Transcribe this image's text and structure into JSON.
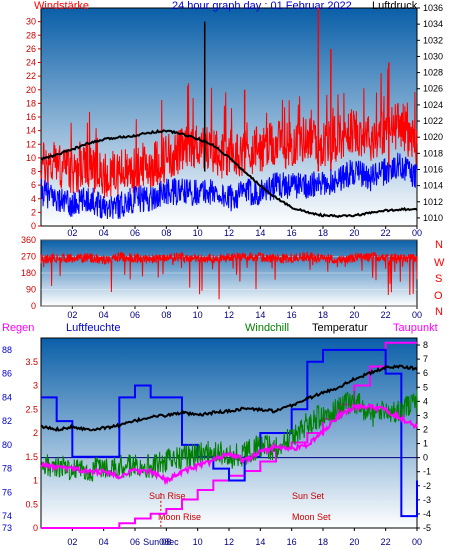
{
  "header": {
    "title": "24 hour graph day : 01 Februar 2022",
    "left_label": "Windstärke",
    "right_label": "Luftdruck"
  },
  "mid_panel": {
    "compass": [
      "N",
      "W",
      "S",
      "O",
      "N"
    ]
  },
  "bottom_header": {
    "regen": "Regen",
    "luftfeuchte": "Luftfeuchte",
    "windchill": "Windchill",
    "temperatur": "Temperatur",
    "taupunkt": "Taupunkt"
  },
  "annotations": {
    "sun_rise": "Sun Rise",
    "sun_set": "Sun Set",
    "moon_rise": "Moon Rise",
    "moon_set": "Moon Set",
    "sunrise_tick": "Sun08ec"
  },
  "colors": {
    "wind": "#ff0000",
    "wind_avg": "#0000ff",
    "pressure": "#000000",
    "direction": "#ff0000",
    "regen": "#ff00ff",
    "luftfeuchte": "#0000ff",
    "windchill": "#008000",
    "temperatur": "#000000",
    "taupunkt": "#ff00ff",
    "grad_top": "#0a5fa8",
    "grad_bottom": "#ffffff"
  },
  "chart_data": [
    {
      "type": "line",
      "x_ticks": [
        "02",
        "04",
        "06",
        "08",
        "10",
        "12",
        "14",
        "16",
        "18",
        "20",
        "22",
        "00"
      ],
      "left_ticks": [
        "0",
        "2",
        "4",
        "6",
        "8",
        "10",
        "12",
        "14",
        "16",
        "18",
        "20",
        "22",
        "24",
        "26",
        "28",
        "30"
      ],
      "right_ticks": [
        "1010",
        "1012",
        "1014",
        "1016",
        "1018",
        "1020",
        "1022",
        "1024",
        "1026",
        "1028",
        "1030",
        "1032",
        "1034",
        "1036"
      ],
      "ylim_left": [
        0,
        32
      ],
      "ylim_right": [
        1009,
        1036
      ],
      "series": [
        {
          "x": [
            0,
            1,
            2,
            3,
            4,
            5,
            6,
            7,
            8,
            9,
            10,
            11,
            12,
            13,
            14,
            15,
            16,
            17,
            18,
            19,
            20,
            21,
            22,
            23,
            24
          ],
          "values": [
            9,
            9,
            8,
            9,
            7,
            8,
            8,
            9,
            10,
            11,
            12,
            11,
            10,
            11,
            11,
            12,
            12,
            13,
            12,
            13,
            14,
            13,
            14,
            15,
            12
          ]
        },
        {
          "x": [
            0,
            1,
            2,
            3,
            4,
            5,
            6,
            7,
            8,
            9,
            10,
            11,
            12,
            13,
            14,
            15,
            16,
            17,
            18,
            19,
            20,
            21,
            22,
            23,
            24
          ],
          "values": [
            5,
            4,
            3,
            4,
            3,
            3,
            4,
            4,
            5,
            5,
            5,
            5,
            4,
            5,
            5,
            6,
            6,
            6,
            6,
            7,
            8,
            7,
            8,
            9,
            7
          ]
        },
        {
          "x": [
            0,
            1,
            2,
            3,
            4,
            5,
            6,
            7,
            8,
            9,
            10,
            11,
            12,
            13,
            14,
            15,
            16,
            17,
            18,
            19,
            20,
            21,
            22,
            23,
            24
          ],
          "values": [
            1017.3,
            1017.8,
            1018.5,
            1019.2,
            1019.7,
            1020.0,
            1020.2,
            1020.6,
            1020.8,
            1020.4,
            1019.8,
            1019.0,
            1017.5,
            1015.7,
            1014.0,
            1012.5,
            1011.3,
            1010.7,
            1010.3,
            1010.2,
            1010.3,
            1010.6,
            1010.9,
            1011.1,
            1011.0
          ]
        }
      ]
    },
    {
      "type": "line",
      "x_ticks": [
        "02",
        "04",
        "06",
        "08",
        "10",
        "12",
        "14",
        "16",
        "18",
        "20",
        "22",
        "00"
      ],
      "left_ticks": [
        "0",
        "90",
        "180",
        "270",
        "360"
      ],
      "ylim": [
        0,
        360
      ],
      "series": [
        {
          "x": [
            0,
            1,
            2,
            3,
            4,
            5,
            6,
            7,
            8,
            9,
            10,
            11,
            12,
            13,
            14,
            15,
            16,
            17,
            18,
            19,
            20,
            21,
            22,
            23,
            24
          ],
          "values": [
            255,
            262,
            258,
            265,
            250,
            270,
            260,
            255,
            262,
            268,
            260,
            258,
            264,
            270,
            265,
            258,
            262,
            268,
            260,
            255,
            262,
            270,
            265,
            258,
            262
          ]
        }
      ]
    },
    {
      "type": "line",
      "x_ticks": [
        "02",
        "04",
        "06",
        "08",
        "10",
        "12",
        "14",
        "16",
        "18",
        "20",
        "22",
        "00"
      ],
      "regen_ticks": [
        "0",
        "0.5",
        "1",
        "1.5",
        "2",
        "2.5",
        "3",
        "3.5"
      ],
      "humidity_ticks": [
        "73",
        "74",
        "76",
        "78",
        "80",
        "82",
        "84",
        "86",
        "88"
      ],
      "temp_ticks": [
        "-5",
        "-4",
        "-3",
        "-2",
        "-1",
        "0",
        "1",
        "2",
        "3",
        "4",
        "5",
        "6",
        "7",
        "8"
      ],
      "ylim_regen": [
        0,
        4
      ],
      "ylim_humidity": [
        73,
        89
      ],
      "ylim_temp": [
        -5,
        8.5
      ],
      "series": [
        {
          "x": [
            0,
            1,
            2,
            3,
            4,
            5,
            6,
            7,
            8,
            9,
            10,
            11,
            12,
            13,
            14,
            15,
            16,
            17,
            18,
            19,
            20,
            21,
            22,
            23,
            24
          ],
          "values": [
            0,
            0,
            0,
            0,
            0,
            0.1,
            0.2,
            0.3,
            0.4,
            0.6,
            0.8,
            1.0,
            1.1,
            1.2,
            1.4,
            1.7,
            1.8,
            2.0,
            2.3,
            2.6,
            3.0,
            3.4,
            3.9,
            3.9,
            3.9
          ]
        },
        {
          "x": [
            0,
            1,
            2,
            3,
            4,
            5,
            6,
            7,
            8,
            9,
            10,
            11,
            12,
            13,
            14,
            15,
            16,
            17,
            18,
            19,
            20,
            21,
            22,
            23,
            24
          ],
          "values": [
            84,
            82,
            79,
            79,
            79,
            84,
            85,
            84,
            84,
            80,
            79,
            78,
            77,
            79,
            81,
            81,
            83,
            87,
            88,
            88,
            88,
            88,
            86,
            74,
            77
          ]
        },
        {
          "x": [
            0,
            1,
            2,
            3,
            4,
            5,
            6,
            7,
            8,
            9,
            10,
            11,
            12,
            13,
            14,
            15,
            16,
            17,
            18,
            19,
            20,
            21,
            22,
            23,
            24
          ],
          "values": [
            -0.3,
            -0.6,
            -0.8,
            -1.0,
            -0.5,
            -0.7,
            -0.4,
            -0.6,
            -0.2,
            0.0,
            0.2,
            0.5,
            0.0,
            0.3,
            0.8,
            0.6,
            1.5,
            2.5,
            3.0,
            3.5,
            4.0,
            3.0,
            3.2,
            3.5,
            4.0
          ]
        },
        {
          "x": [
            0,
            1,
            2,
            3,
            4,
            5,
            6,
            7,
            8,
            9,
            10,
            11,
            12,
            13,
            14,
            15,
            16,
            17,
            18,
            19,
            20,
            21,
            22,
            23,
            24
          ],
          "values": [
            2.2,
            2.0,
            2.2,
            2.0,
            2.1,
            2.3,
            2.6,
            2.9,
            3.0,
            3.2,
            3.0,
            3.2,
            3.3,
            3.5,
            3.4,
            3.3,
            3.7,
            4.2,
            4.6,
            5.0,
            5.6,
            6.0,
            6.4,
            6.5,
            6.3
          ]
        },
        {
          "x": [
            0,
            1,
            2,
            3,
            4,
            5,
            6,
            7,
            8,
            9,
            10,
            11,
            12,
            13,
            14,
            15,
            16,
            17,
            18,
            19,
            20,
            21,
            22,
            23,
            24
          ],
          "values": [
            -0.5,
            -0.7,
            -0.8,
            -1.0,
            -1.0,
            -1.3,
            -0.9,
            -1.0,
            -1.6,
            -1.0,
            -0.6,
            -0.2,
            0.3,
            -0.2,
            0.4,
            0.8,
            0.6,
            0.9,
            1.8,
            3.0,
            3.6,
            3.6,
            3.4,
            2.8,
            2.2
          ]
        }
      ]
    }
  ]
}
